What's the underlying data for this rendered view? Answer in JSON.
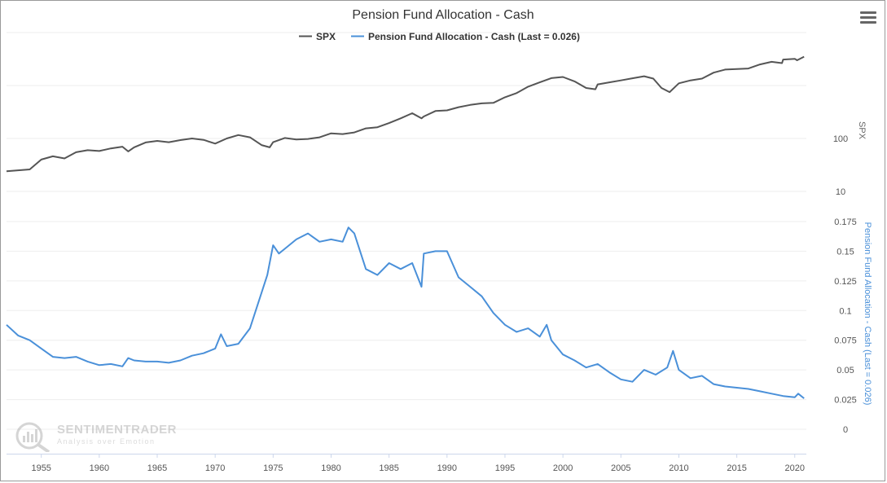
{
  "chart_data": {
    "type": "line",
    "title": "Pension Fund Allocation - Cash",
    "legend": [
      {
        "name": "SPX",
        "color": "#555555"
      },
      {
        "name": "Pension Fund Allocation - Cash (Last = 0.026)",
        "color": "#4a90d9"
      }
    ],
    "xlim": [
      1952,
      2021
    ],
    "x_ticks": [
      "1955",
      "1960",
      "1965",
      "1970",
      "1975",
      "1980",
      "1985",
      "1990",
      "1995",
      "2000",
      "2005",
      "2010",
      "2015",
      "2020"
    ],
    "spx_axis": {
      "label": "SPX",
      "scale": "log",
      "ticks": [
        "10",
        "100"
      ]
    },
    "cash_axis": {
      "label": "Pension Fund Allocation - Cash (Last = 0.026)",
      "ylim": [
        0,
        0.175
      ],
      "ticks": [
        "0",
        "0.025",
        "0.05",
        "0.075",
        "0.1",
        "0.125",
        "0.15",
        "0.175"
      ]
    },
    "series": [
      {
        "name": "SPX",
        "x": [
          1952,
          1953,
          1954,
          1955,
          1956,
          1957,
          1958,
          1959,
          1960,
          1961,
          1962,
          1962.5,
          1963,
          1964,
          1965,
          1966,
          1967,
          1968,
          1969,
          1970,
          1971,
          1972,
          1973,
          1974,
          1974.7,
          1975,
          1976,
          1977,
          1978,
          1979,
          1980,
          1981,
          1982,
          1983,
          1984,
          1985,
          1986,
          1987,
          1987.8,
          1988,
          1989,
          1990,
          1991,
          1992,
          1993,
          1994,
          1995,
          1996,
          1997,
          1998,
          1999,
          2000,
          2001,
          2002,
          2002.8,
          2003,
          2004,
          2005,
          2006,
          2007,
          2007.8,
          2008.5,
          2009.2,
          2010,
          2011,
          2012,
          2013,
          2014,
          2015,
          2016,
          2017,
          2018,
          2018.9,
          2019,
          2020,
          2020.2,
          2020.8
        ],
        "values": [
          24,
          25,
          26,
          40,
          46,
          42,
          55,
          60,
          58,
          65,
          70,
          57,
          68,
          84,
          90,
          85,
          93,
          100,
          94,
          80,
          100,
          116,
          105,
          75,
          68,
          85,
          102,
          96,
          98,
          105,
          125,
          121,
          130,
          155,
          163,
          195,
          240,
          300,
          240,
          260,
          330,
          340,
          390,
          430,
          460,
          470,
          600,
          720,
          950,
          1150,
          1380,
          1450,
          1200,
          900,
          850,
          1050,
          1150,
          1250,
          1370,
          1500,
          1350,
          900,
          750,
          1100,
          1250,
          1350,
          1750,
          2000,
          2050,
          2100,
          2500,
          2800,
          2650,
          3100,
          3200,
          3000,
          3500
        ]
      },
      {
        "name": "Pension Fund Allocation - Cash (Last = 0.026)",
        "x": [
          1952,
          1953,
          1954,
          1955,
          1956,
          1957,
          1958,
          1959,
          1960,
          1961,
          1962,
          1962.5,
          1963,
          1964,
          1965,
          1966,
          1967,
          1968,
          1969,
          1970,
          1970.5,
          1971,
          1972,
          1973,
          1974,
          1974.5,
          1975,
          1975.5,
          1976,
          1977,
          1978,
          1979,
          1980,
          1981,
          1981.5,
          1982,
          1983,
          1984,
          1985,
          1986,
          1987,
          1987.8,
          1988,
          1989,
          1990,
          1991,
          1992,
          1993,
          1994,
          1995,
          1996,
          1997,
          1998,
          1998.6,
          1999,
          2000,
          2001,
          2002,
          2003,
          2004,
          2005,
          2006,
          2007,
          2008,
          2009,
          2009.5,
          2010,
          2011,
          2012,
          2013,
          2014,
          2015,
          2016,
          2017,
          2018,
          2019,
          2020,
          2020.3,
          2020.8
        ],
        "values": [
          0.088,
          0.079,
          0.075,
          0.068,
          0.061,
          0.06,
          0.061,
          0.057,
          0.054,
          0.055,
          0.053,
          0.06,
          0.058,
          0.057,
          0.057,
          0.056,
          0.058,
          0.062,
          0.064,
          0.068,
          0.08,
          0.07,
          0.072,
          0.085,
          0.115,
          0.13,
          0.155,
          0.148,
          0.152,
          0.16,
          0.165,
          0.158,
          0.16,
          0.158,
          0.17,
          0.165,
          0.135,
          0.13,
          0.14,
          0.135,
          0.14,
          0.12,
          0.148,
          0.15,
          0.15,
          0.128,
          0.12,
          0.112,
          0.098,
          0.088,
          0.082,
          0.085,
          0.078,
          0.088,
          0.075,
          0.063,
          0.058,
          0.052,
          0.055,
          0.048,
          0.042,
          0.04,
          0.05,
          0.046,
          0.052,
          0.066,
          0.05,
          0.043,
          0.045,
          0.038,
          0.036,
          0.035,
          0.034,
          0.032,
          0.03,
          0.028,
          0.027,
          0.03,
          0.026
        ]
      }
    ]
  }
}
